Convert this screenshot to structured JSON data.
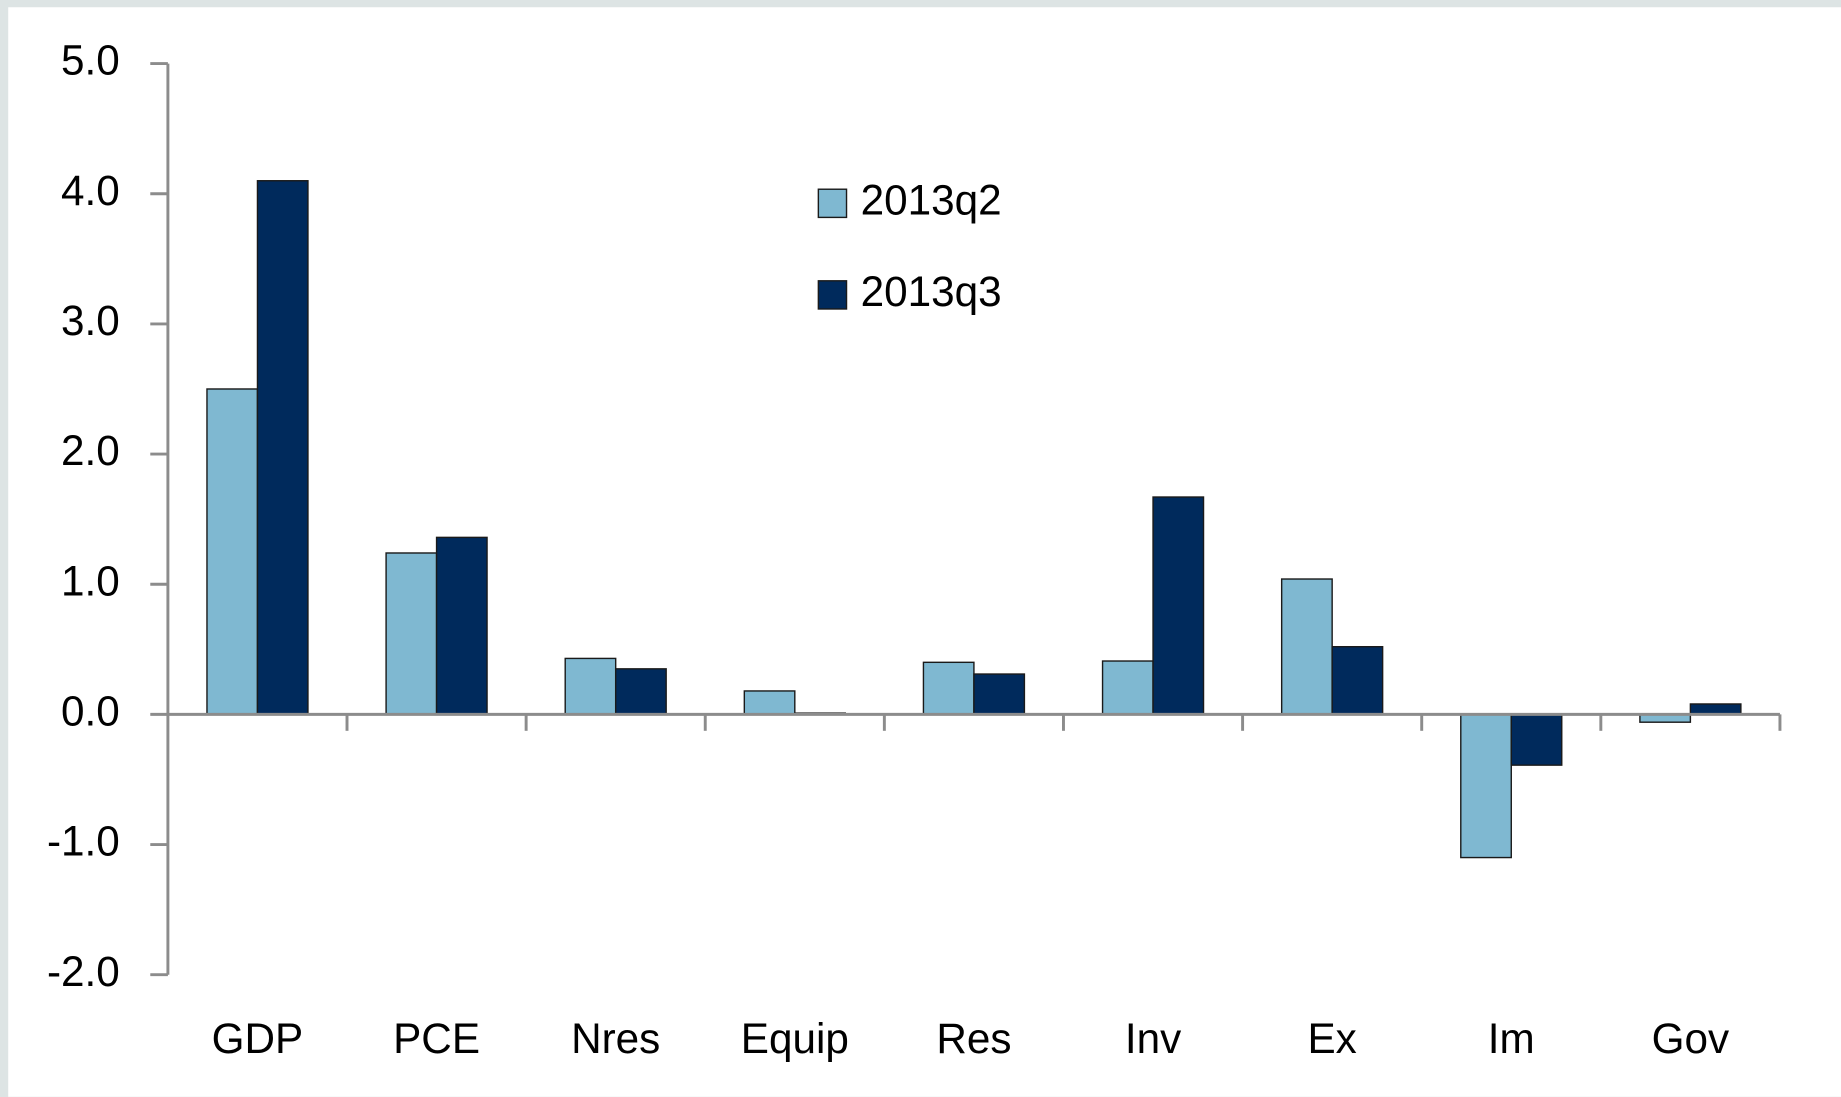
{
  "chart_data": {
    "type": "bar",
    "categories": [
      "GDP",
      "PCE",
      "Nres",
      "Equip",
      "Res",
      "Inv",
      "Ex",
      "Im",
      "Gov"
    ],
    "series": [
      {
        "name": "2013q2",
        "color": "#7fb8d1",
        "values": [
          2.5,
          1.24,
          0.43,
          0.18,
          0.4,
          0.41,
          1.04,
          -1.1,
          -0.06
        ]
      },
      {
        "name": "2013q3",
        "color": "#002a5c",
        "values": [
          4.1,
          1.36,
          0.35,
          0.01,
          0.31,
          1.67,
          0.52,
          -0.39,
          0.08
        ]
      }
    ],
    "ylim": [
      -2,
      5
    ],
    "yticks": [
      {
        "value": -2,
        "label": "-2.0"
      },
      {
        "value": -1,
        "label": "-1.0"
      },
      {
        "value": 0,
        "label": "0.0"
      },
      {
        "value": 1,
        "label": "1.0"
      },
      {
        "value": 2,
        "label": "2.0"
      },
      {
        "value": 3,
        "label": "3.0"
      },
      {
        "value": 4,
        "label": "4.0"
      },
      {
        "value": 5,
        "label": "5.0"
      }
    ],
    "grid": false,
    "legend": "top-center"
  }
}
